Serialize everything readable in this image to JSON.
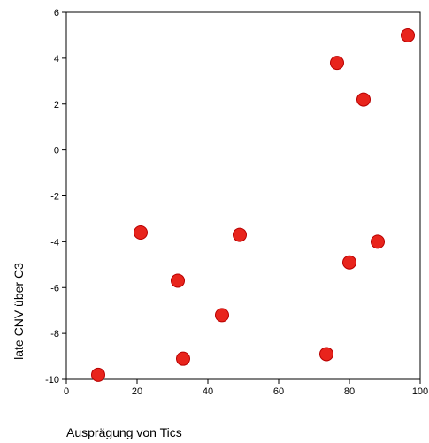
{
  "chart_data": {
    "type": "scatter",
    "xlabel": "Ausprägung von Tics",
    "ylabel": "late CNV über C3",
    "xlim": [
      0,
      100
    ],
    "ylim": [
      -10,
      6
    ],
    "x_ticks": [
      0,
      20,
      40,
      60,
      80,
      100
    ],
    "y_ticks": [
      -10,
      -8,
      -6,
      -4,
      -2,
      0,
      2,
      4,
      6
    ],
    "grid": false,
    "legend": "none",
    "marker_color": "#e8241c",
    "points": [
      {
        "x": 9,
        "y": -9.8
      },
      {
        "x": 21,
        "y": -3.6
      },
      {
        "x": 31.5,
        "y": -5.7
      },
      {
        "x": 33,
        "y": -9.1
      },
      {
        "x": 44,
        "y": -7.2
      },
      {
        "x": 49,
        "y": -3.7
      },
      {
        "x": 73.5,
        "y": -8.9
      },
      {
        "x": 76.5,
        "y": 3.8
      },
      {
        "x": 80,
        "y": -4.9
      },
      {
        "x": 84,
        "y": 2.2
      },
      {
        "x": 88,
        "y": -4.0
      },
      {
        "x": 96.5,
        "y": 5.0
      }
    ]
  }
}
